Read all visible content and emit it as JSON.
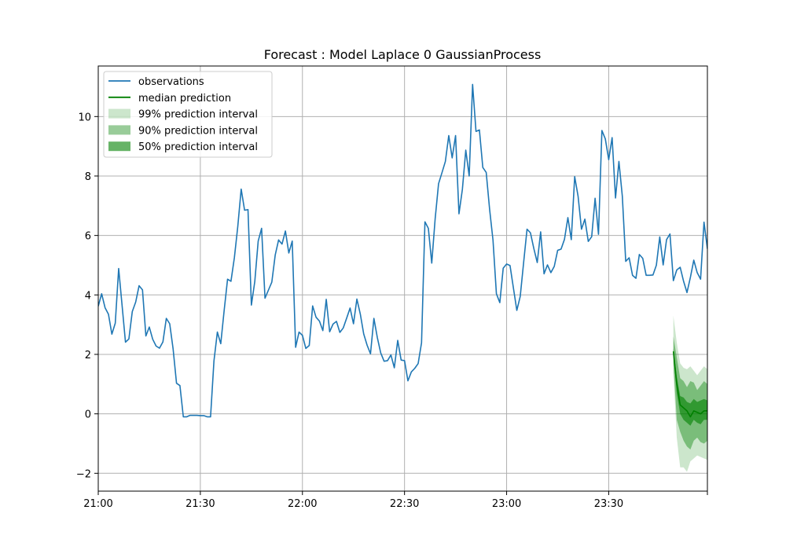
{
  "chart_data": {
    "type": "line",
    "title": "Forecast : Model Laplace 0 GaussianProcess",
    "xlabel": "",
    "ylabel": "",
    "x_unit": "minute",
    "x_start": "21:00",
    "x_range": [
      "21:00",
      "23:59"
    ],
    "ylim": [
      -2.6,
      11.7
    ],
    "grid": true,
    "legend_position": "upper-left",
    "xticks": [
      {
        "at": "21:00",
        "label": "21:00"
      },
      {
        "at": "21:30",
        "label": "21:30"
      },
      {
        "at": "22:00",
        "label": "22:00"
      },
      {
        "at": "22:30",
        "label": "22:30"
      },
      {
        "at": "23:00",
        "label": "23:00"
      },
      {
        "at": "23:30",
        "label": "23:30"
      }
    ],
    "yticks": [
      -2,
      0,
      2,
      4,
      6,
      8,
      10
    ],
    "colors": {
      "observations": "#1f77b4",
      "median": "#008000",
      "interval_99": "#008000",
      "interval_90": "#008000",
      "interval_50": "#008000",
      "grid": "#b0b0b0"
    },
    "observations": {
      "name": "observations",
      "times": [
        "21:00",
        "21:01",
        "21:02",
        "21:03",
        "21:04",
        "21:05",
        "21:06",
        "21:07",
        "21:08",
        "21:09",
        "21:10",
        "21:11",
        "21:12",
        "21:13",
        "21:14",
        "21:15",
        "21:16",
        "21:17",
        "21:18",
        "21:19",
        "21:20",
        "21:21",
        "21:22",
        "21:23",
        "21:24",
        "21:25",
        "21:26",
        "21:27",
        "21:28",
        "21:29",
        "21:30",
        "21:31",
        "21:32",
        "21:33",
        "21:34",
        "21:35",
        "21:36",
        "21:37",
        "21:38",
        "21:39",
        "21:40",
        "21:41",
        "21:42",
        "21:43",
        "21:44",
        "21:45",
        "21:46",
        "21:47",
        "21:48",
        "21:49",
        "21:50",
        "21:51",
        "21:52",
        "21:53",
        "21:54",
        "21:55",
        "21:56",
        "21:57",
        "21:58",
        "21:59",
        "22:00",
        "22:01",
        "22:02",
        "22:03",
        "22:04",
        "22:05",
        "22:06",
        "22:07",
        "22:08",
        "22:09",
        "22:10",
        "22:11",
        "22:12",
        "22:13",
        "22:14",
        "22:15",
        "22:16",
        "22:17",
        "22:18",
        "22:19",
        "22:20",
        "22:21",
        "22:22",
        "22:23",
        "22:24",
        "22:25",
        "22:26",
        "22:27",
        "22:28",
        "22:29",
        "22:30",
        "22:31",
        "22:32",
        "22:33",
        "22:34",
        "22:35",
        "22:36",
        "22:37",
        "22:38",
        "22:39",
        "22:40",
        "22:41",
        "22:42",
        "22:43",
        "22:44",
        "22:45",
        "22:46",
        "22:47",
        "22:48",
        "22:49",
        "22:50",
        "22:51",
        "22:52",
        "22:53",
        "22:54",
        "22:55",
        "22:56",
        "22:57",
        "22:58",
        "22:59",
        "23:00",
        "23:01",
        "23:02",
        "23:03",
        "23:04",
        "23:05",
        "23:06",
        "23:07",
        "23:08",
        "23:09",
        "23:10",
        "23:11",
        "23:12",
        "23:13",
        "23:14",
        "23:15",
        "23:16",
        "23:17",
        "23:18",
        "23:19",
        "23:20",
        "23:21",
        "23:22",
        "23:23",
        "23:24",
        "23:25",
        "23:26",
        "23:27",
        "23:28",
        "23:29",
        "23:30",
        "23:31",
        "23:32",
        "23:33",
        "23:34",
        "23:35",
        "23:36",
        "23:37",
        "23:38",
        "23:39",
        "23:40",
        "23:41",
        "23:42",
        "23:43",
        "23:44",
        "23:45",
        "23:46",
        "23:47",
        "23:48",
        "23:49",
        "23:50",
        "23:51",
        "23:52",
        "23:53",
        "23:54",
        "23:55",
        "23:56",
        "23:57",
        "23:58",
        "23:59"
      ],
      "values": [
        3.62,
        4.04,
        3.57,
        3.35,
        2.68,
        3.05,
        4.89,
        3.65,
        2.41,
        2.52,
        3.44,
        3.76,
        4.31,
        4.17,
        2.62,
        2.92,
        2.51,
        2.28,
        2.21,
        2.42,
        3.21,
        3.03,
        2.18,
        1.03,
        0.95,
        -0.1,
        -0.1,
        -0.05,
        -0.05,
        -0.05,
        -0.06,
        -0.06,
        -0.1,
        -0.1,
        1.78,
        2.75,
        2.36,
        3.48,
        4.53,
        4.46,
        5.25,
        6.3,
        7.56,
        6.85,
        6.87,
        3.66,
        4.45,
        5.81,
        6.24,
        3.89,
        4.16,
        4.43,
        5.34,
        5.85,
        5.71,
        6.15,
        5.41,
        5.81,
        2.24,
        2.75,
        2.64,
        2.2,
        2.3,
        3.63,
        3.25,
        3.12,
        2.8,
        3.85,
        2.76,
        3.02,
        3.11,
        2.74,
        2.89,
        3.22,
        3.56,
        3.03,
        3.86,
        3.36,
        2.69,
        2.31,
        2.02,
        3.21,
        2.57,
        2.05,
        1.77,
        1.79,
        1.98,
        1.55,
        2.47,
        1.81,
        1.79,
        1.11,
        1.41,
        1.53,
        1.69,
        2.39,
        6.46,
        6.24,
        5.07,
        6.56,
        7.74,
        8.11,
        8.49,
        9.36,
        8.61,
        9.36,
        6.73,
        7.55,
        8.87,
        8.0,
        11.08,
        9.5,
        9.55,
        8.29,
        8.12,
        6.88,
        5.84,
        4.04,
        3.74,
        4.9,
        5.04,
        4.99,
        4.23,
        3.48,
        3.95,
        5.09,
        6.21,
        6.09,
        5.56,
        5.09,
        6.12,
        4.71,
        5.01,
        4.75,
        4.96,
        5.5,
        5.54,
        5.87,
        6.6,
        5.86,
        7.98,
        7.32,
        6.21,
        6.55,
        5.8,
        5.96,
        7.25,
        6.04,
        9.53,
        9.25,
        8.55,
        9.29,
        7.26,
        8.49,
        7.32,
        5.13,
        5.25,
        4.66,
        4.56,
        5.36,
        5.23,
        4.66,
        4.66,
        4.67,
        5.0,
        5.95,
        5.01,
        5.86,
        6.05,
        4.48,
        4.84,
        4.93,
        4.46,
        4.08,
        4.59,
        5.17,
        4.75,
        4.53,
        6.45,
        5.55
      ]
    },
    "forecast": {
      "times": [
        "23:49",
        "23:50",
        "23:51",
        "23:52",
        "23:53",
        "23:54",
        "23:55",
        "23:56",
        "23:57",
        "23:58",
        "23:59"
      ],
      "median": [
        2.1,
        1.0,
        0.3,
        0.2,
        0.1,
        -0.1,
        0.1,
        0.05,
        0.0,
        0.1,
        0.1
      ],
      "interval_50": {
        "lower": [
          2.0,
          0.7,
          0.0,
          -0.2,
          -0.3,
          -0.4,
          -0.2,
          -0.3,
          -0.35,
          -0.2,
          -0.2
        ],
        "upper": [
          2.2,
          1.25,
          0.6,
          0.55,
          0.4,
          0.35,
          0.5,
          0.4,
          0.45,
          0.5,
          0.45
        ]
      },
      "interval_90": {
        "lower": [
          1.7,
          -0.2,
          -0.6,
          -0.9,
          -1.1,
          -1.2,
          -0.9,
          -0.8,
          -0.95,
          -1.0,
          -0.9
        ],
        "upper": [
          2.6,
          1.9,
          1.2,
          1.1,
          0.9,
          1.1,
          1.05,
          0.8,
          0.95,
          1.1,
          1.0
        ]
      },
      "interval_99": {
        "lower": [
          1.4,
          -0.8,
          -1.8,
          -1.8,
          -1.95,
          -1.6,
          -1.5,
          -1.4,
          -1.45,
          -1.5,
          -1.55
        ],
        "upper": [
          3.3,
          2.4,
          1.7,
          1.55,
          1.5,
          1.6,
          1.45,
          1.3,
          1.45,
          1.6,
          1.5
        ]
      }
    },
    "legend": [
      {
        "key": "observations",
        "label": "observations",
        "kind": "line"
      },
      {
        "key": "median",
        "label": "median prediction",
        "kind": "line"
      },
      {
        "key": "interval_99",
        "label": "99% prediction interval",
        "kind": "patch"
      },
      {
        "key": "interval_90",
        "label": "90% prediction interval",
        "kind": "patch"
      },
      {
        "key": "interval_50",
        "label": "50% prediction interval",
        "kind": "patch"
      }
    ]
  }
}
